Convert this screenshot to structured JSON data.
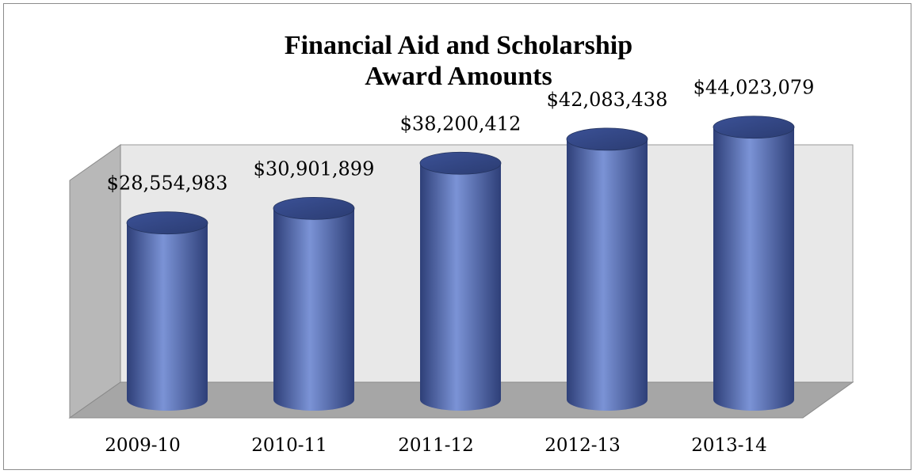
{
  "chart_data": {
    "type": "bar",
    "style": "3d-cylinder",
    "title_lines": [
      "Financial Aid and Scholarship",
      "Award Amounts"
    ],
    "categories": [
      "2009-10",
      "2010-11",
      "2011-12",
      "2012-13",
      "2013-14"
    ],
    "values": [
      28554983,
      30901899,
      38200412,
      42083438,
      44023079
    ],
    "value_labels": [
      "$28,554,983",
      "$30,901,899",
      "$38,200,412",
      "$42,083,438",
      "$44,023,079"
    ],
    "xlabel": "",
    "ylabel": "",
    "ylim": [
      0,
      50000000
    ],
    "grid": false,
    "legend": "none",
    "colors": {
      "bar": "#4f67b0",
      "bar_light": "#7b93d6",
      "bar_dark": "#2e3f78",
      "wall": "#e8e8e8",
      "floor": "#a6a6a6",
      "side_wall": "#b8b8b8"
    }
  }
}
